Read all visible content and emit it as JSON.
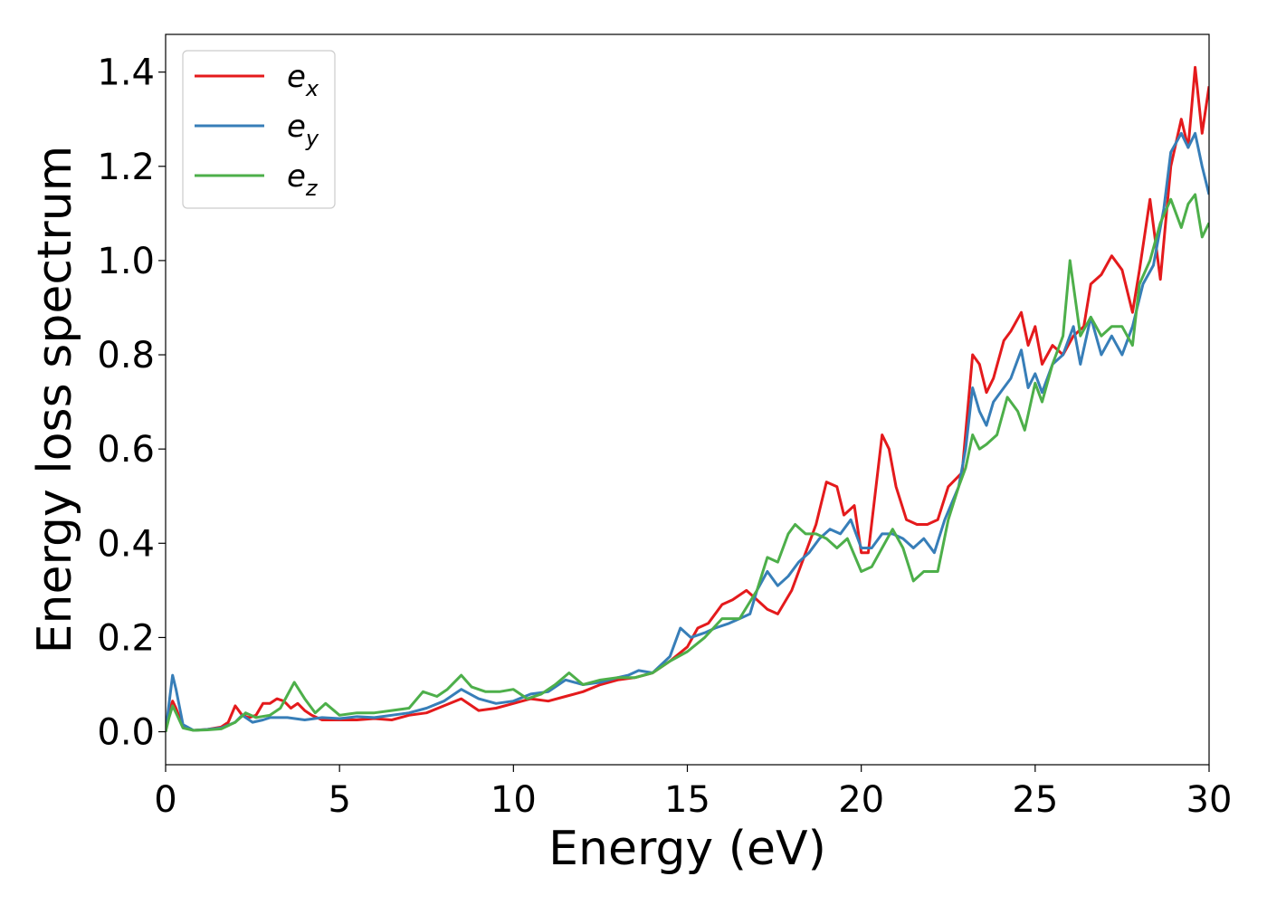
{
  "chart_data": {
    "type": "line",
    "title": "",
    "xlabel": "Energy (eV)",
    "ylabel": "Energy loss spectrum",
    "xlim": [
      0,
      30
    ],
    "ylim": [
      -0.07,
      1.48
    ],
    "xticks": [
      0,
      5,
      10,
      15,
      20,
      25,
      30
    ],
    "xtick_labels": [
      "0",
      "5",
      "10",
      "15",
      "20",
      "25",
      "30"
    ],
    "yticks": [
      0.0,
      0.2,
      0.4,
      0.6,
      0.8,
      1.0,
      1.2,
      1.4
    ],
    "ytick_labels": [
      "0.0",
      "0.2",
      "0.4",
      "0.6",
      "0.8",
      "1.0",
      "1.2",
      "1.4"
    ],
    "grid": false,
    "legend_position": "top-left",
    "series": [
      {
        "name": "e_x",
        "base": "e",
        "sub": "x",
        "color": "#e41a1c",
        "points": [
          [
            0,
            0
          ],
          [
            0.1,
            0.04
          ],
          [
            0.2,
            0.065
          ],
          [
            0.3,
            0.05
          ],
          [
            0.5,
            0.01
          ],
          [
            0.8,
            0.003
          ],
          [
            1.2,
            0.005
          ],
          [
            1.6,
            0.01
          ],
          [
            1.8,
            0.02
          ],
          [
            2.0,
            0.055
          ],
          [
            2.2,
            0.035
          ],
          [
            2.4,
            0.03
          ],
          [
            2.6,
            0.035
          ],
          [
            2.8,
            0.06
          ],
          [
            3.0,
            0.06
          ],
          [
            3.2,
            0.07
          ],
          [
            3.4,
            0.065
          ],
          [
            3.6,
            0.05
          ],
          [
            3.8,
            0.06
          ],
          [
            4.0,
            0.045
          ],
          [
            4.2,
            0.035
          ],
          [
            4.5,
            0.025
          ],
          [
            5.0,
            0.025
          ],
          [
            5.5,
            0.025
          ],
          [
            6.0,
            0.028
          ],
          [
            6.5,
            0.025
          ],
          [
            7.0,
            0.035
          ],
          [
            7.5,
            0.04
          ],
          [
            8.0,
            0.055
          ],
          [
            8.5,
            0.07
          ],
          [
            9.0,
            0.045
          ],
          [
            9.5,
            0.05
          ],
          [
            10.0,
            0.06
          ],
          [
            10.5,
            0.07
          ],
          [
            11.0,
            0.065
          ],
          [
            11.5,
            0.075
          ],
          [
            12.0,
            0.085
          ],
          [
            12.5,
            0.1
          ],
          [
            13.0,
            0.11
          ],
          [
            13.5,
            0.115
          ],
          [
            14.0,
            0.125
          ],
          [
            14.5,
            0.15
          ],
          [
            15.0,
            0.18
          ],
          [
            15.3,
            0.22
          ],
          [
            15.6,
            0.23
          ],
          [
            16.0,
            0.27
          ],
          [
            16.3,
            0.28
          ],
          [
            16.7,
            0.3
          ],
          [
            17.0,
            0.28
          ],
          [
            17.3,
            0.26
          ],
          [
            17.6,
            0.25
          ],
          [
            18.0,
            0.3
          ],
          [
            18.4,
            0.38
          ],
          [
            18.7,
            0.44
          ],
          [
            19.0,
            0.53
          ],
          [
            19.3,
            0.52
          ],
          [
            19.5,
            0.46
          ],
          [
            19.8,
            0.48
          ],
          [
            20.0,
            0.38
          ],
          [
            20.2,
            0.38
          ],
          [
            20.6,
            0.63
          ],
          [
            20.8,
            0.6
          ],
          [
            21.0,
            0.52
          ],
          [
            21.3,
            0.45
          ],
          [
            21.6,
            0.44
          ],
          [
            21.9,
            0.44
          ],
          [
            22.2,
            0.45
          ],
          [
            22.5,
            0.52
          ],
          [
            22.9,
            0.55
          ],
          [
            23.2,
            0.8
          ],
          [
            23.4,
            0.78
          ],
          [
            23.6,
            0.72
          ],
          [
            23.8,
            0.75
          ],
          [
            24.1,
            0.83
          ],
          [
            24.3,
            0.85
          ],
          [
            24.6,
            0.89
          ],
          [
            24.8,
            0.82
          ],
          [
            25.0,
            0.86
          ],
          [
            25.2,
            0.78
          ],
          [
            25.5,
            0.82
          ],
          [
            25.8,
            0.8
          ],
          [
            26.1,
            0.84
          ],
          [
            26.4,
            0.86
          ],
          [
            26.6,
            0.95
          ],
          [
            26.9,
            0.97
          ],
          [
            27.2,
            1.01
          ],
          [
            27.5,
            0.98
          ],
          [
            27.8,
            0.89
          ],
          [
            28.0,
            0.98
          ],
          [
            28.3,
            1.13
          ],
          [
            28.6,
            0.96
          ],
          [
            28.9,
            1.2
          ],
          [
            29.2,
            1.3
          ],
          [
            29.4,
            1.24
          ],
          [
            29.6,
            1.41
          ],
          [
            29.8,
            1.27
          ],
          [
            30.0,
            1.37
          ]
        ]
      },
      {
        "name": "e_y",
        "base": "e",
        "sub": "y",
        "color": "#377eb8",
        "points": [
          [
            0,
            0
          ],
          [
            0.1,
            0.06
          ],
          [
            0.2,
            0.12
          ],
          [
            0.3,
            0.09
          ],
          [
            0.5,
            0.015
          ],
          [
            0.8,
            0.003
          ],
          [
            1.2,
            0.005
          ],
          [
            1.6,
            0.008
          ],
          [
            2.0,
            0.02
          ],
          [
            2.2,
            0.035
          ],
          [
            2.5,
            0.02
          ],
          [
            2.8,
            0.025
          ],
          [
            3.0,
            0.03
          ],
          [
            3.5,
            0.03
          ],
          [
            4.0,
            0.025
          ],
          [
            4.5,
            0.03
          ],
          [
            5.0,
            0.028
          ],
          [
            5.5,
            0.032
          ],
          [
            6.0,
            0.03
          ],
          [
            6.5,
            0.035
          ],
          [
            7.0,
            0.04
          ],
          [
            7.5,
            0.05
          ],
          [
            8.0,
            0.065
          ],
          [
            8.5,
            0.09
          ],
          [
            9.0,
            0.07
          ],
          [
            9.5,
            0.06
          ],
          [
            10.0,
            0.065
          ],
          [
            10.5,
            0.08
          ],
          [
            11.0,
            0.085
          ],
          [
            11.5,
            0.11
          ],
          [
            12.0,
            0.1
          ],
          [
            12.5,
            0.105
          ],
          [
            13.0,
            0.115
          ],
          [
            13.3,
            0.12
          ],
          [
            13.6,
            0.13
          ],
          [
            14.0,
            0.125
          ],
          [
            14.5,
            0.16
          ],
          [
            14.8,
            0.22
          ],
          [
            15.1,
            0.2
          ],
          [
            15.5,
            0.21
          ],
          [
            15.8,
            0.22
          ],
          [
            16.2,
            0.23
          ],
          [
            16.5,
            0.24
          ],
          [
            16.8,
            0.25
          ],
          [
            17.0,
            0.3
          ],
          [
            17.3,
            0.34
          ],
          [
            17.6,
            0.31
          ],
          [
            17.9,
            0.33
          ],
          [
            18.2,
            0.36
          ],
          [
            18.5,
            0.38
          ],
          [
            18.8,
            0.41
          ],
          [
            19.1,
            0.43
          ],
          [
            19.4,
            0.42
          ],
          [
            19.7,
            0.45
          ],
          [
            20.0,
            0.39
          ],
          [
            20.3,
            0.39
          ],
          [
            20.6,
            0.42
          ],
          [
            20.9,
            0.42
          ],
          [
            21.2,
            0.41
          ],
          [
            21.5,
            0.39
          ],
          [
            21.8,
            0.41
          ],
          [
            22.1,
            0.38
          ],
          [
            22.4,
            0.45
          ],
          [
            22.8,
            0.52
          ],
          [
            23.0,
            0.6
          ],
          [
            23.2,
            0.73
          ],
          [
            23.4,
            0.68
          ],
          [
            23.6,
            0.65
          ],
          [
            23.8,
            0.7
          ],
          [
            24.1,
            0.73
          ],
          [
            24.3,
            0.75
          ],
          [
            24.6,
            0.81
          ],
          [
            24.8,
            0.73
          ],
          [
            25.0,
            0.76
          ],
          [
            25.2,
            0.72
          ],
          [
            25.5,
            0.78
          ],
          [
            25.8,
            0.8
          ],
          [
            26.1,
            0.86
          ],
          [
            26.3,
            0.78
          ],
          [
            26.6,
            0.88
          ],
          [
            26.9,
            0.8
          ],
          [
            27.2,
            0.84
          ],
          [
            27.5,
            0.8
          ],
          [
            27.8,
            0.86
          ],
          [
            28.1,
            0.95
          ],
          [
            28.4,
            0.99
          ],
          [
            28.7,
            1.11
          ],
          [
            28.9,
            1.23
          ],
          [
            29.2,
            1.27
          ],
          [
            29.4,
            1.24
          ],
          [
            29.6,
            1.27
          ],
          [
            29.8,
            1.2
          ],
          [
            30.0,
            1.14
          ]
        ]
      },
      {
        "name": "e_z",
        "base": "e",
        "sub": "z",
        "color": "#4daf4a",
        "points": [
          [
            0,
            0
          ],
          [
            0.1,
            0.03
          ],
          [
            0.2,
            0.055
          ],
          [
            0.3,
            0.04
          ],
          [
            0.5,
            0.008
          ],
          [
            0.8,
            0.003
          ],
          [
            1.2,
            0.004
          ],
          [
            1.6,
            0.006
          ],
          [
            2.0,
            0.02
          ],
          [
            2.3,
            0.04
          ],
          [
            2.6,
            0.03
          ],
          [
            3.0,
            0.035
          ],
          [
            3.3,
            0.05
          ],
          [
            3.7,
            0.105
          ],
          [
            4.0,
            0.07
          ],
          [
            4.3,
            0.04
          ],
          [
            4.6,
            0.06
          ],
          [
            5.0,
            0.035
          ],
          [
            5.5,
            0.04
          ],
          [
            6.0,
            0.04
          ],
          [
            6.5,
            0.045
          ],
          [
            7.0,
            0.05
          ],
          [
            7.4,
            0.085
          ],
          [
            7.8,
            0.075
          ],
          [
            8.1,
            0.09
          ],
          [
            8.5,
            0.12
          ],
          [
            8.8,
            0.095
          ],
          [
            9.2,
            0.085
          ],
          [
            9.6,
            0.085
          ],
          [
            10.0,
            0.09
          ],
          [
            10.4,
            0.07
          ],
          [
            10.8,
            0.08
          ],
          [
            11.2,
            0.1
          ],
          [
            11.6,
            0.125
          ],
          [
            12.0,
            0.1
          ],
          [
            12.5,
            0.11
          ],
          [
            13.0,
            0.115
          ],
          [
            13.5,
            0.115
          ],
          [
            14.0,
            0.125
          ],
          [
            14.5,
            0.15
          ],
          [
            15.0,
            0.17
          ],
          [
            15.5,
            0.2
          ],
          [
            16.0,
            0.24
          ],
          [
            16.5,
            0.24
          ],
          [
            17.0,
            0.3
          ],
          [
            17.3,
            0.37
          ],
          [
            17.6,
            0.36
          ],
          [
            17.9,
            0.42
          ],
          [
            18.1,
            0.44
          ],
          [
            18.4,
            0.42
          ],
          [
            18.7,
            0.42
          ],
          [
            19.0,
            0.41
          ],
          [
            19.3,
            0.39
          ],
          [
            19.6,
            0.41
          ],
          [
            20.0,
            0.34
          ],
          [
            20.3,
            0.35
          ],
          [
            20.6,
            0.39
          ],
          [
            20.9,
            0.43
          ],
          [
            21.2,
            0.39
          ],
          [
            21.5,
            0.32
          ],
          [
            21.8,
            0.34
          ],
          [
            22.2,
            0.34
          ],
          [
            22.5,
            0.45
          ],
          [
            22.8,
            0.52
          ],
          [
            23.0,
            0.56
          ],
          [
            23.2,
            0.63
          ],
          [
            23.4,
            0.6
          ],
          [
            23.6,
            0.61
          ],
          [
            23.9,
            0.63
          ],
          [
            24.2,
            0.71
          ],
          [
            24.5,
            0.68
          ],
          [
            24.7,
            0.64
          ],
          [
            25.0,
            0.74
          ],
          [
            25.2,
            0.7
          ],
          [
            25.5,
            0.78
          ],
          [
            25.8,
            0.84
          ],
          [
            26.0,
            1.0
          ],
          [
            26.3,
            0.84
          ],
          [
            26.6,
            0.88
          ],
          [
            26.9,
            0.84
          ],
          [
            27.2,
            0.86
          ],
          [
            27.5,
            0.86
          ],
          [
            27.8,
            0.82
          ],
          [
            28.0,
            0.95
          ],
          [
            28.3,
            1.0
          ],
          [
            28.6,
            1.08
          ],
          [
            28.9,
            1.13
          ],
          [
            29.2,
            1.07
          ],
          [
            29.4,
            1.12
          ],
          [
            29.6,
            1.14
          ],
          [
            29.8,
            1.05
          ],
          [
            30.0,
            1.08
          ]
        ]
      }
    ]
  }
}
